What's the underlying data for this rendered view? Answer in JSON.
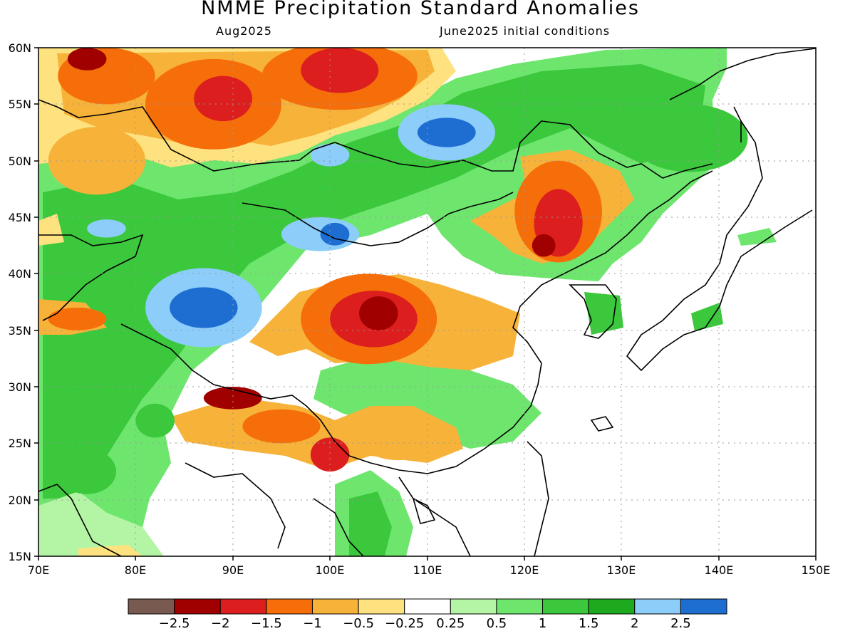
{
  "header": {
    "title": "NMME Precipitation Standard Anomalies",
    "target_month": "Aug2025",
    "initial_conditions": "June2025 initial conditions"
  },
  "map": {
    "lon_range": [
      70,
      150
    ],
    "lat_range": [
      15,
      60
    ],
    "lat_ticks": [
      "60N",
      "55N",
      "50N",
      "45N",
      "40N",
      "35N",
      "30N",
      "25N",
      "20N",
      "15N"
    ],
    "lon_ticks": [
      "70E",
      "80E",
      "90E",
      "100E",
      "110E",
      "120E",
      "130E",
      "140E",
      "150E"
    ],
    "anomaly_regions": [
      {
        "lon": 77,
        "lat": 57.5,
        "rx": 5,
        "ry": 2.5,
        "level": "neg1"
      },
      {
        "lon": 75,
        "lat": 59,
        "rx": 2,
        "ry": 1,
        "level": "neg2"
      },
      {
        "lon": 88,
        "lat": 55,
        "rx": 7,
        "ry": 4,
        "level": "neg1"
      },
      {
        "lon": 89,
        "lat": 55.5,
        "rx": 3,
        "ry": 2,
        "level": "neg1_5"
      },
      {
        "lon": 101,
        "lat": 57.5,
        "rx": 8,
        "ry": 3,
        "level": "neg1"
      },
      {
        "lon": 101,
        "lat": 58,
        "rx": 4,
        "ry": 2,
        "level": "neg1_5"
      },
      {
        "lon": 76,
        "lat": 50,
        "rx": 5,
        "ry": 3,
        "level": "neg0_5"
      },
      {
        "lon": 123.5,
        "lat": 45.5,
        "rx": 4.5,
        "ry": 4.5,
        "level": "neg1"
      },
      {
        "lon": 123.5,
        "lat": 44.5,
        "rx": 2.5,
        "ry": 3,
        "level": "neg1_5"
      },
      {
        "lon": 122,
        "lat": 42.5,
        "rx": 1.2,
        "ry": 1,
        "level": "neg2_5"
      },
      {
        "lon": 104,
        "lat": 36,
        "rx": 7,
        "ry": 4,
        "level": "neg1"
      },
      {
        "lon": 104.5,
        "lat": 36,
        "rx": 4.5,
        "ry": 2.5,
        "level": "neg1_5"
      },
      {
        "lon": 105,
        "lat": 36.5,
        "rx": 2,
        "ry": 1.5,
        "level": "neg2"
      },
      {
        "lon": 90,
        "lat": 29,
        "rx": 3,
        "ry": 1,
        "level": "neg2"
      },
      {
        "lon": 95,
        "lat": 26.5,
        "rx": 4,
        "ry": 1.5,
        "level": "neg1"
      },
      {
        "lon": 100,
        "lat": 24,
        "rx": 2,
        "ry": 1.5,
        "level": "neg1_5"
      },
      {
        "lon": 107,
        "lat": 25.5,
        "rx": 4,
        "ry": 2,
        "level": "neg0_5"
      },
      {
        "lon": 74,
        "lat": 36,
        "rx": 3,
        "ry": 1,
        "level": "neg1"
      },
      {
        "lon": 87,
        "lat": 37,
        "rx": 6,
        "ry": 3.5,
        "level": "pos2"
      },
      {
        "lon": 87,
        "lat": 37,
        "rx": 3.5,
        "ry": 1.8,
        "level": "pos2_5"
      },
      {
        "lon": 99,
        "lat": 43.5,
        "rx": 4,
        "ry": 1.5,
        "level": "pos2"
      },
      {
        "lon": 100.5,
        "lat": 43.5,
        "rx": 1.5,
        "ry": 1,
        "level": "pos2_5"
      },
      {
        "lon": 112,
        "lat": 52.5,
        "rx": 5,
        "ry": 2.5,
        "level": "pos2"
      },
      {
        "lon": 112,
        "lat": 52.5,
        "rx": 3,
        "ry": 1.3,
        "level": "pos2_5"
      },
      {
        "lon": 100,
        "lat": 50.5,
        "rx": 2,
        "ry": 1,
        "level": "pos2"
      },
      {
        "lon": 77,
        "lat": 44,
        "rx": 2,
        "ry": 0.8,
        "level": "pos2"
      },
      {
        "lon": 137,
        "lat": 52,
        "rx": 6,
        "ry": 3,
        "level": "pos1_5"
      },
      {
        "lon": 75,
        "lat": 22.5,
        "rx": 3,
        "ry": 2,
        "level": "pos1_5"
      },
      {
        "lon": 82,
        "lat": 27,
        "rx": 2,
        "ry": 1.5,
        "level": "pos1_5"
      }
    ]
  },
  "colorbar": {
    "colors": [
      "#785a50",
      "#a00000",
      "#dc1e1e",
      "#f56e0a",
      "#f7b23a",
      "#fee27f",
      "#ffffff",
      "#b4f5a5",
      "#6ee66e",
      "#3cc83c",
      "#1eaa1e",
      "#8ccdfa",
      "#1e6ed2"
    ],
    "labels": [
      "−2.5",
      "−2",
      "−1.5",
      "−1",
      "−0.5",
      "−0.25",
      "0.25",
      "0.5",
      "1",
      "1.5",
      "2",
      "2.5"
    ],
    "values": [
      -2.5,
      -2,
      -1.5,
      -1,
      -0.5,
      -0.25,
      0.25,
      0.5,
      1,
      1.5,
      2,
      2.5
    ]
  },
  "level_colors": {
    "neg2_5": "#a00000",
    "neg2": "#a00000",
    "neg1_5": "#dc1e1e",
    "neg1": "#f56e0a",
    "neg0_5": "#f7b23a",
    "pos1_5": "#3cc83c",
    "pos2": "#8ccdfa",
    "pos2_5": "#1e6ed2"
  }
}
